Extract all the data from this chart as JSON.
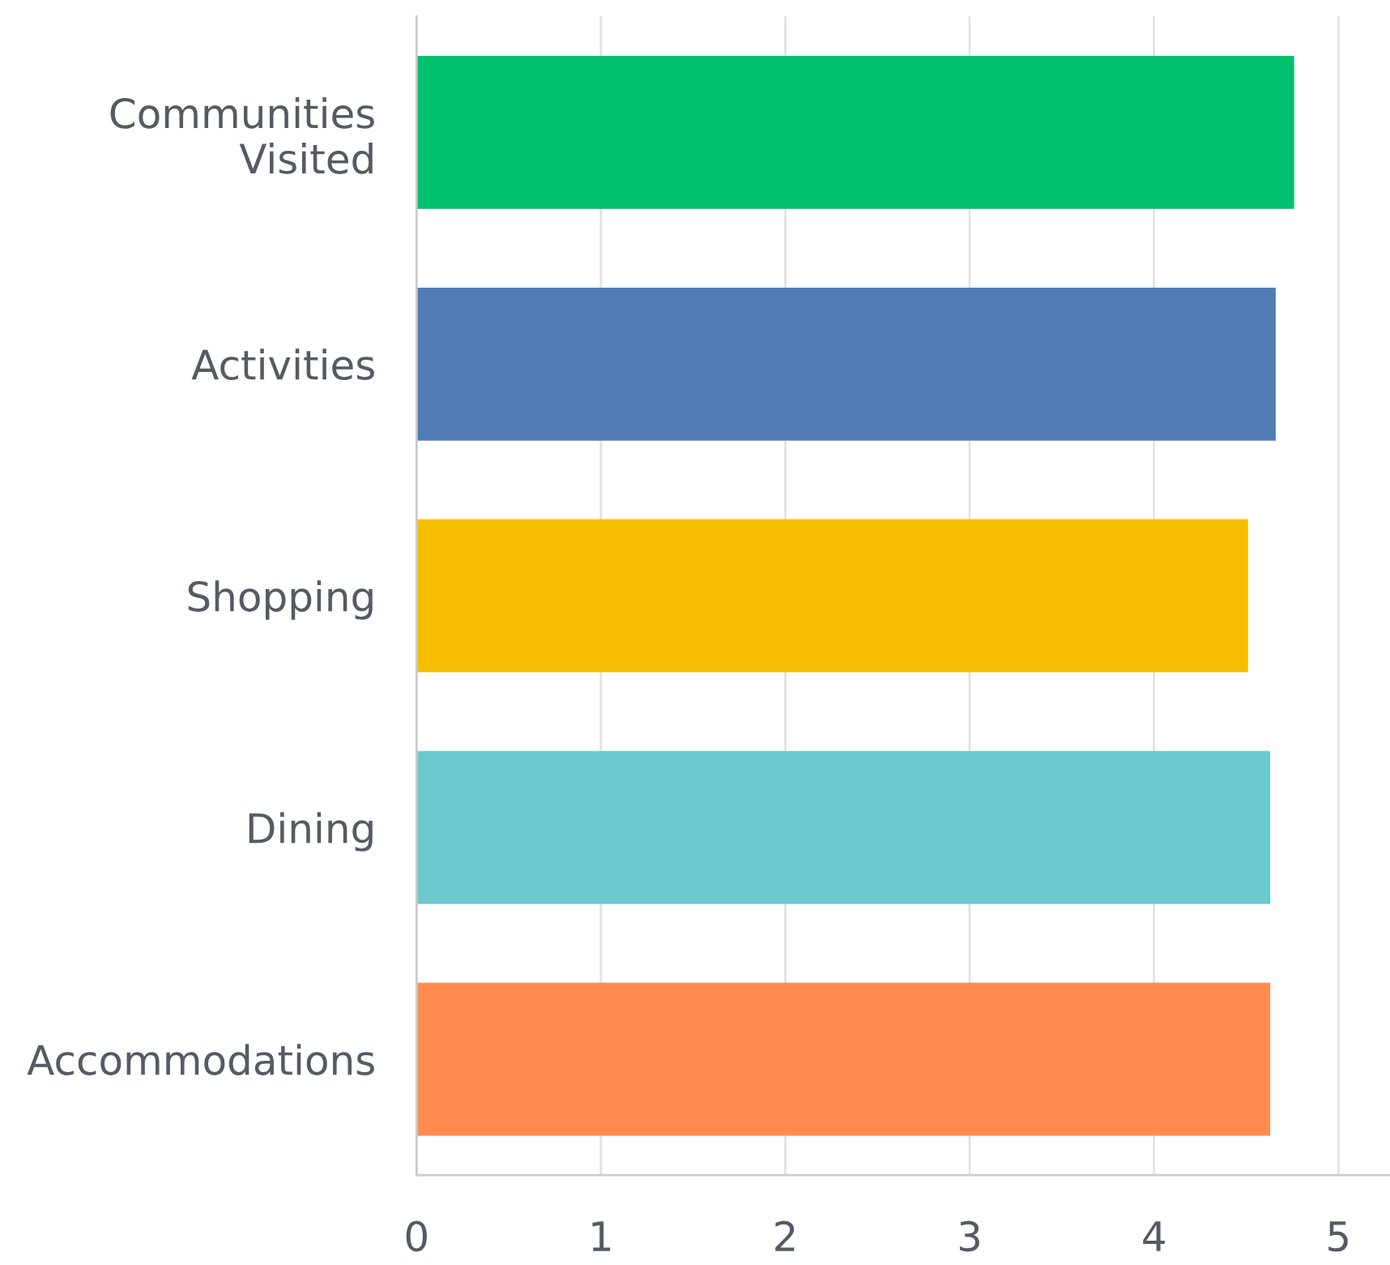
{
  "chart_data": {
    "type": "bar",
    "orientation": "horizontal",
    "categories": [
      "Communities\nVisited",
      "Activities",
      "Shopping",
      "Dining",
      "Accommodations"
    ],
    "values": [
      4.76,
      4.66,
      4.51,
      4.63,
      4.63
    ],
    "colors": [
      "#00bf6f",
      "#507cb6",
      "#f7bd00",
      "#6bc8cd",
      "#ff8b4f"
    ],
    "xlim": [
      0,
      5.28
    ],
    "xticks": [
      0,
      1,
      2,
      3,
      4,
      5
    ],
    "grid": "x"
  }
}
